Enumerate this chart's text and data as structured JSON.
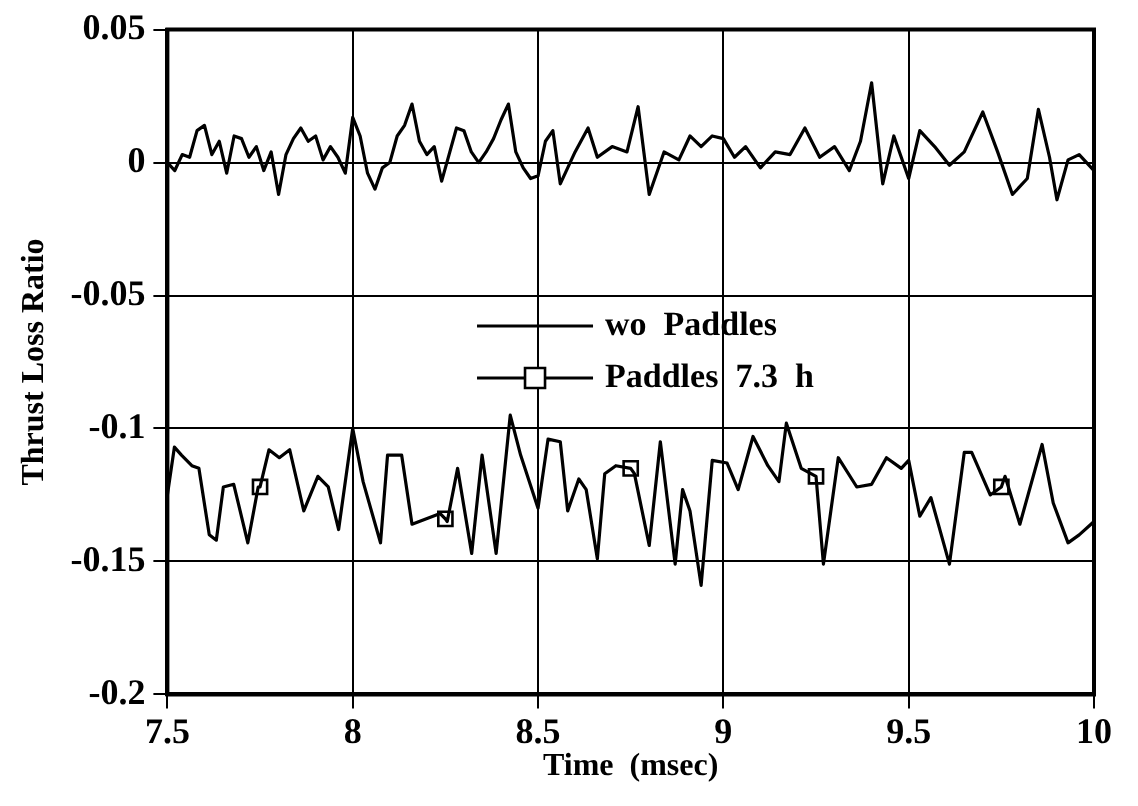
{
  "chart_data": {
    "type": "line",
    "xlabel": "Time  (msec)",
    "ylabel": "Thrust Loss Ratio",
    "xlim": [
      7.5,
      10
    ],
    "xticks": [
      7.5,
      8,
      8.5,
      9,
      9.5,
      10
    ],
    "ylim": [
      -0.2,
      0.05
    ],
    "yticks": [
      0.05,
      0,
      -0.05,
      -0.1,
      -0.15,
      -0.2
    ],
    "grid": true,
    "legend": "center",
    "line_style": "solid",
    "series": [
      {
        "name": "wo  Paddles",
        "color": "#000000",
        "marker": "none",
        "x": [
          7.5,
          7.52,
          7.54,
          7.56,
          7.58,
          7.6,
          7.62,
          7.64,
          7.66,
          7.68,
          7.7,
          7.72,
          7.74,
          7.76,
          7.78,
          7.8,
          7.82,
          7.84,
          7.86,
          7.88,
          7.9,
          7.92,
          7.94,
          7.96,
          7.98,
          8.0,
          8.02,
          8.04,
          8.06,
          8.08,
          8.1,
          8.12,
          8.14,
          8.16,
          8.18,
          8.2,
          8.22,
          8.24,
          8.26,
          8.28,
          8.3,
          8.32,
          8.34,
          8.36,
          8.38,
          8.4,
          8.42,
          8.44,
          8.46,
          8.48,
          8.5,
          8.52,
          8.54,
          8.56,
          8.6,
          8.635,
          8.66,
          8.7,
          8.74,
          8.77,
          8.8,
          8.84,
          8.88,
          8.91,
          8.94,
          8.97,
          9.0,
          9.03,
          9.06,
          9.1,
          9.14,
          9.18,
          9.22,
          9.26,
          9.3,
          9.34,
          9.37,
          9.4,
          9.43,
          9.46,
          9.5,
          9.53,
          9.57,
          9.61,
          9.65,
          9.7,
          9.74,
          9.78,
          9.82,
          9.85,
          9.88,
          9.9,
          9.93,
          9.96,
          10.0
        ],
        "values": [
          0,
          -0.003,
          0.003,
          0.002,
          0.012,
          0.014,
          0.003,
          0.008,
          -0.004,
          0.01,
          0.009,
          0.002,
          0.006,
          -0.003,
          0.004,
          -0.012,
          0.003,
          0.009,
          0.013,
          0.008,
          0.01,
          0.001,
          0.006,
          0.002,
          -0.004,
          0.017,
          0.01,
          -0.004,
          -0.01,
          -0.002,
          0,
          0.01,
          0.014,
          0.022,
          0.008,
          0.003,
          0.006,
          -0.007,
          0.003,
          0.013,
          0.012,
          0.004,
          0,
          0.004,
          0.009,
          0.016,
          0.022,
          0.004,
          -0.002,
          -0.006,
          -0.005,
          0.008,
          0.012,
          -0.008,
          0.004,
          0.013,
          0.002,
          0.006,
          0.004,
          0.021,
          -0.012,
          0.004,
          0.001,
          0.01,
          0.006,
          0.01,
          0.009,
          0.002,
          0.006,
          -0.002,
          0.004,
          0.003,
          0.013,
          0.002,
          0.006,
          -0.003,
          0.008,
          0.03,
          -0.008,
          0.01,
          -0.006,
          0.012,
          0.006,
          -0.001,
          0.004,
          0.019,
          0.004,
          -0.012,
          -0.006,
          0.02,
          0.002,
          -0.014,
          0.001,
          0.003,
          -0.003
        ]
      },
      {
        "name": "Paddles  7.3  h",
        "color": "#000000",
        "x": [
          7.5,
          7.519,
          7.538,
          7.566,
          7.585,
          7.613,
          7.632,
          7.651,
          7.679,
          7.717,
          7.745,
          7.75,
          7.774,
          7.802,
          7.83,
          7.868,
          7.906,
          7.934,
          7.962,
          8.0,
          8.028,
          8.075,
          8.094,
          8.132,
          8.16,
          8.236,
          8.25,
          8.255,
          8.283,
          8.321,
          8.349,
          8.387,
          8.425,
          8.453,
          8.5,
          8.527,
          8.56,
          8.58,
          8.61,
          8.63,
          8.66,
          8.68,
          8.71,
          8.75,
          8.76,
          8.8,
          8.83,
          8.87,
          8.89,
          8.91,
          8.94,
          8.97,
          9.01,
          9.04,
          9.08,
          9.12,
          9.15,
          9.17,
          9.21,
          9.25,
          9.27,
          9.31,
          9.36,
          9.4,
          9.44,
          9.48,
          9.5,
          9.53,
          9.56,
          9.61,
          9.65,
          9.67,
          9.72,
          9.75,
          9.76,
          9.8,
          9.86,
          9.89,
          9.93,
          9.96,
          10.0
        ],
        "values": [
          -0.125,
          -0.107,
          -0.11,
          -0.114,
          -0.115,
          -0.14,
          -0.142,
          -0.122,
          -0.121,
          -0.143,
          -0.122,
          -0.122,
          -0.108,
          -0.111,
          -0.108,
          -0.131,
          -0.118,
          -0.122,
          -0.138,
          -0.1,
          -0.12,
          -0.143,
          -0.11,
          -0.11,
          -0.136,
          -0.132,
          -0.134,
          -0.135,
          -0.115,
          -0.147,
          -0.11,
          -0.147,
          -0.095,
          -0.11,
          -0.13,
          -0.104,
          -0.105,
          -0.131,
          -0.119,
          -0.123,
          -0.149,
          -0.117,
          -0.114,
          -0.115,
          -0.117,
          -0.144,
          -0.105,
          -0.151,
          -0.123,
          -0.131,
          -0.159,
          -0.112,
          -0.113,
          -0.123,
          -0.103,
          -0.114,
          -0.12,
          -0.098,
          -0.115,
          -0.118,
          -0.151,
          -0.111,
          -0.122,
          -0.121,
          -0.111,
          -0.115,
          -0.112,
          -0.133,
          -0.126,
          -0.151,
          -0.109,
          -0.109,
          -0.125,
          -0.122,
          -0.118,
          -0.136,
          -0.106,
          -0.128,
          -0.143,
          -0.14,
          -0.135
        ]
      },
      {
        "type": "scatter",
        "color": "#000000",
        "marker": "square",
        "x": [
          7.75,
          8.25,
          8.75,
          9.25,
          9.75
        ],
        "values": [
          -0.122,
          -0.134,
          -0.115,
          -0.118,
          -0.122
        ]
      }
    ]
  }
}
